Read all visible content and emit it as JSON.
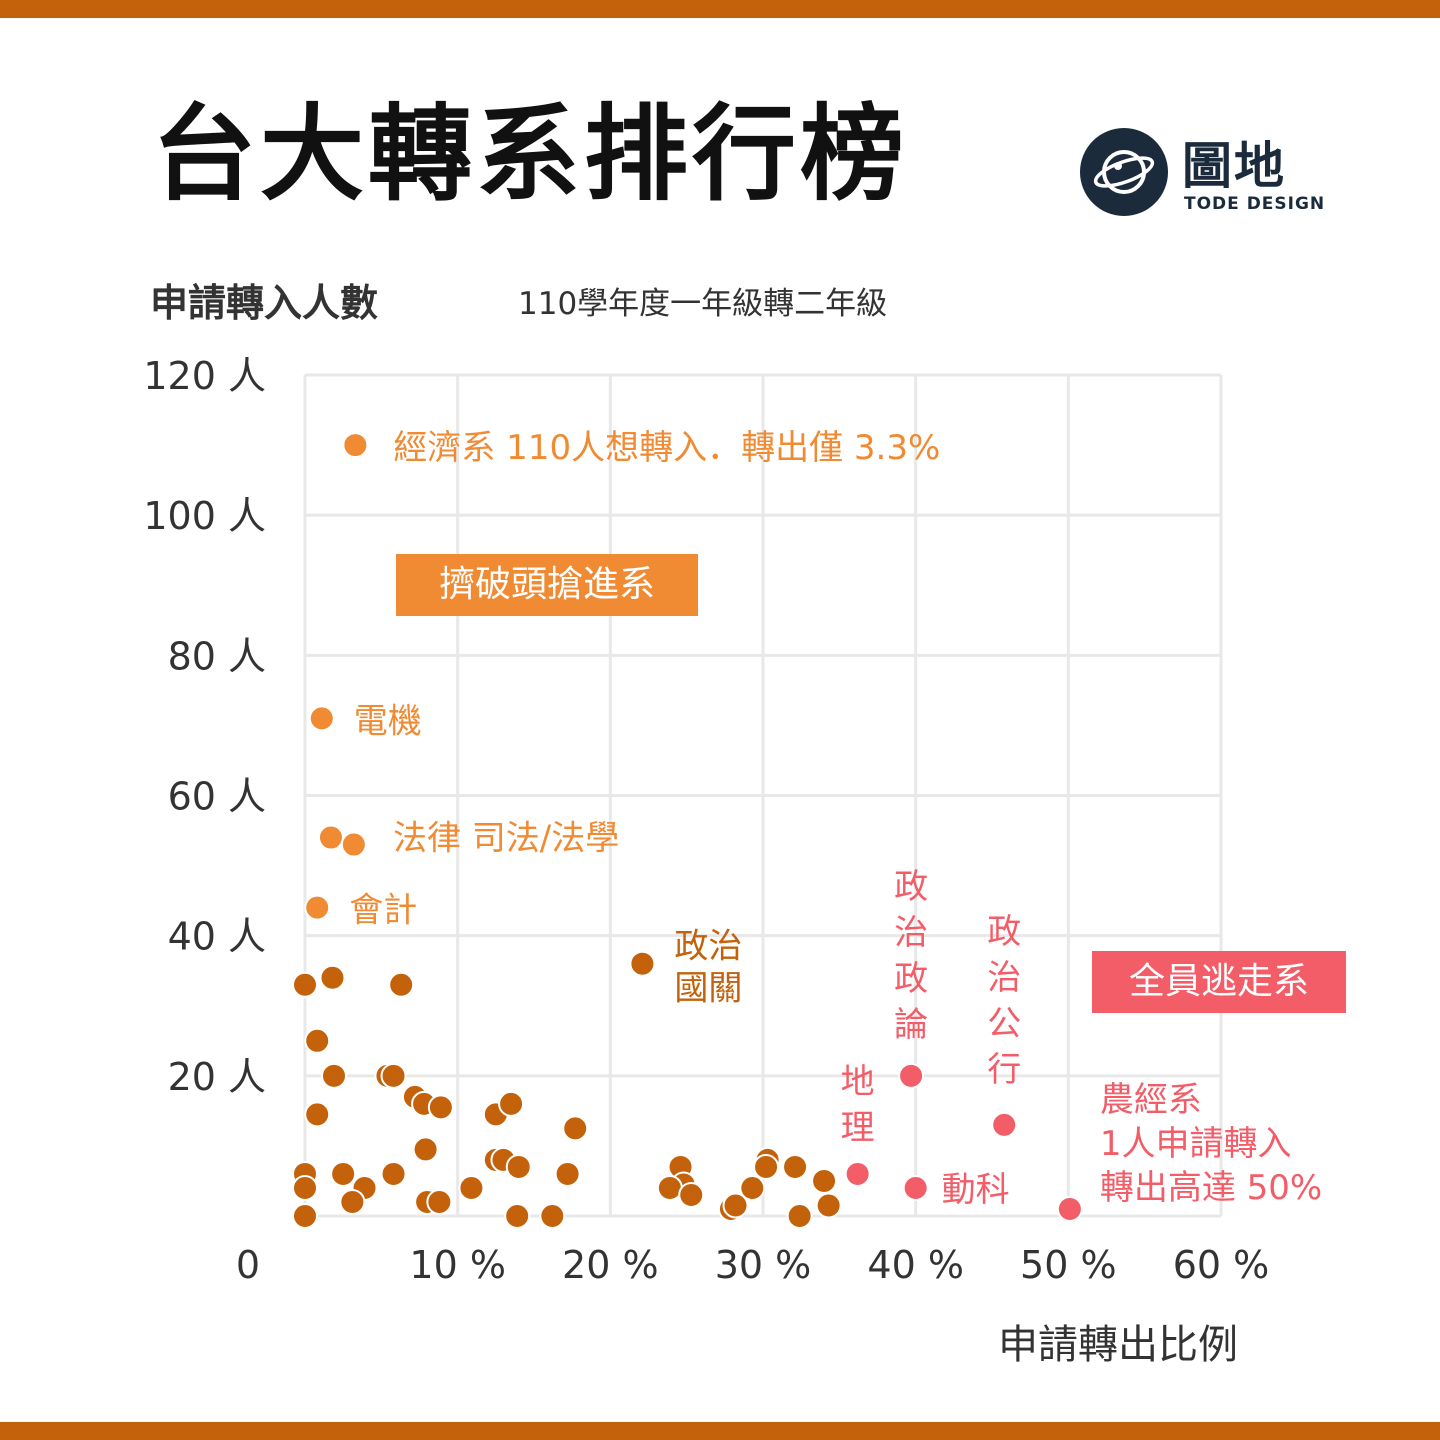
{
  "header": {
    "title": "台大轉系排行榜",
    "logo_name": "圖地",
    "logo_sub": "TODE DESIGN"
  },
  "chart_data": {
    "type": "scatter",
    "title": "台大轉系排行榜",
    "subtitle": "110學年度一年級轉二年級",
    "ylabel": "申請轉入人數",
    "xlabel": "申請轉出比例",
    "x_ticks": [
      "10 %",
      "20 %",
      "30 %",
      "40 %",
      "50 %",
      "60 %"
    ],
    "y_ticks": [
      "120 人",
      "100 人",
      "80 人",
      "60 人",
      "40 人",
      "20 人"
    ],
    "origin_label": "0",
    "xlim": [
      0,
      60
    ],
    "ylim": [
      0,
      120
    ],
    "grid": true,
    "colors": {
      "popular": "#f08a33",
      "normal": "#c4620c",
      "unpopular": "#f25d68",
      "grid": "#e8e8e8"
    },
    "annotation_boxes": {
      "popular": "擠破頭搶進系",
      "unpopular": "全員逃走系"
    },
    "series": [
      {
        "group": "popular",
        "points": [
          {
            "x": 3.3,
            "y": 110,
            "label": "經濟系 110人想轉入．轉出僅 3.3%"
          },
          {
            "x": 1.1,
            "y": 71,
            "label": "電機"
          },
          {
            "x": 1.7,
            "y": 54,
            "label": "法律 司法/法學"
          },
          {
            "x": 3.2,
            "y": 53
          },
          {
            "x": 0.8,
            "y": 44,
            "label": "會計"
          }
        ]
      },
      {
        "group": "normal",
        "points": [
          {
            "x": 22.1,
            "y": 36,
            "label": "政治\n國關"
          },
          {
            "x": 0.0,
            "y": 33
          },
          {
            "x": 1.8,
            "y": 34
          },
          {
            "x": 6.3,
            "y": 33
          },
          {
            "x": 0.8,
            "y": 25
          },
          {
            "x": 1.9,
            "y": 20
          },
          {
            "x": 5.4,
            "y": 20
          },
          {
            "x": 5.8,
            "y": 20
          },
          {
            "x": 7.2,
            "y": 17
          },
          {
            "x": 7.8,
            "y": 16
          },
          {
            "x": 8.9,
            "y": 15.5
          },
          {
            "x": 0.8,
            "y": 14.5
          },
          {
            "x": 12.5,
            "y": 14.5
          },
          {
            "x": 13.5,
            "y": 16
          },
          {
            "x": 17.7,
            "y": 12.5
          },
          {
            "x": 7.9,
            "y": 9.5
          },
          {
            "x": 12.5,
            "y": 8
          },
          {
            "x": 13.0,
            "y": 8
          },
          {
            "x": 14.0,
            "y": 7
          },
          {
            "x": 24.6,
            "y": 7
          },
          {
            "x": 30.3,
            "y": 8
          },
          {
            "x": 30.2,
            "y": 7
          },
          {
            "x": 32.1,
            "y": 7
          },
          {
            "x": 0.0,
            "y": 6
          },
          {
            "x": 2.5,
            "y": 6
          },
          {
            "x": 5.8,
            "y": 6
          },
          {
            "x": 17.2,
            "y": 6
          },
          {
            "x": 34.0,
            "y": 5
          },
          {
            "x": 24.8,
            "y": 4.5
          },
          {
            "x": 0.0,
            "y": 4
          },
          {
            "x": 3.9,
            "y": 4
          },
          {
            "x": 10.9,
            "y": 4
          },
          {
            "x": 23.9,
            "y": 4
          },
          {
            "x": 29.3,
            "y": 4
          },
          {
            "x": 25.3,
            "y": 3
          },
          {
            "x": 3.1,
            "y": 2
          },
          {
            "x": 8.0,
            "y": 2
          },
          {
            "x": 8.8,
            "y": 2
          },
          {
            "x": 27.9,
            "y": 1
          },
          {
            "x": 28.2,
            "y": 1.5
          },
          {
            "x": 34.3,
            "y": 1.5
          },
          {
            "x": 0.0,
            "y": 0
          },
          {
            "x": 13.9,
            "y": 0
          },
          {
            "x": 16.2,
            "y": 0
          },
          {
            "x": 32.4,
            "y": 0
          }
        ]
      },
      {
        "group": "unpopular",
        "points": [
          {
            "x": 39.7,
            "y": 20,
            "label": "政\n治\n政\n論"
          },
          {
            "x": 45.8,
            "y": 13,
            "label": "政\n治\n公\n行"
          },
          {
            "x": 36.2,
            "y": 6,
            "label": "地\n理"
          },
          {
            "x": 40.0,
            "y": 4,
            "label": "動科"
          },
          {
            "x": 50.1,
            "y": 1,
            "label": "農經系\n1人申請轉入\n轉出高達 50%"
          }
        ]
      }
    ]
  }
}
